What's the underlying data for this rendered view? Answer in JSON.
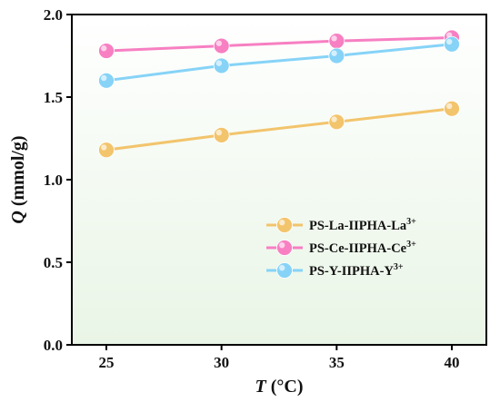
{
  "chart_data": {
    "type": "line",
    "x": [
      25,
      30,
      35,
      40
    ],
    "series": [
      {
        "name_main": "PS-La-IIPHA-La",
        "name_sup": "3+",
        "color": "#f2c46c",
        "values": [
          1.18,
          1.27,
          1.35,
          1.43
        ]
      },
      {
        "name_main": "PS-Ce-IIPHA-Ce",
        "name_sup": "3+",
        "color": "#f77fc2",
        "values": [
          1.78,
          1.81,
          1.84,
          1.86
        ]
      },
      {
        "name_main": "PS-Y-IIPHA-Y",
        "name_sup": "3+",
        "color": "#86d3f7",
        "values": [
          1.6,
          1.69,
          1.75,
          1.82
        ]
      }
    ],
    "xlabel_symbol": "T",
    "xlabel_unit": " (°C)",
    "ylabel_symbol": "Q",
    "ylabel_unit": " (mmol/g)",
    "xlim": [
      23.5,
      41.5
    ],
    "ylim": [
      0.0,
      2.0
    ],
    "x_ticks": [
      "25",
      "30",
      "35",
      "40"
    ],
    "y_ticks": [
      "0.0",
      "0.5",
      "1.0",
      "1.5",
      "2.0"
    ],
    "grid": false,
    "legend_position": "lower-right",
    "background_gradient": [
      "#ffffff",
      "#e9f5e6"
    ]
  }
}
